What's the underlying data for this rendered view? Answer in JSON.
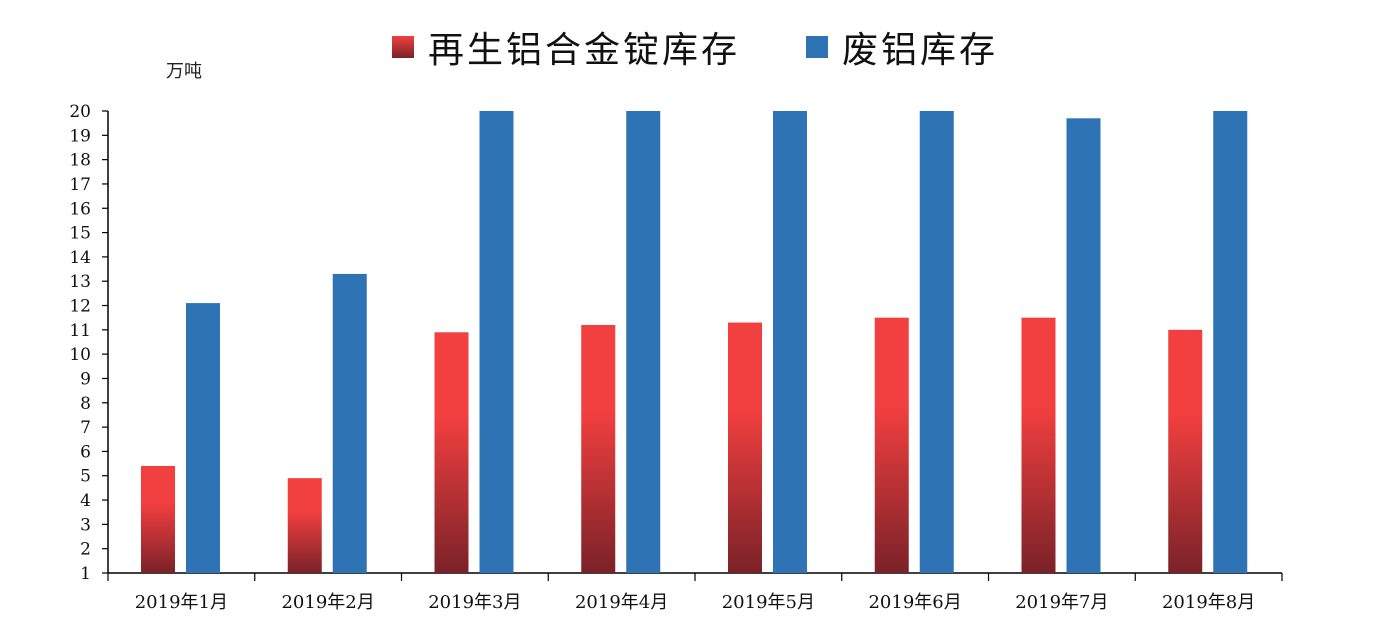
{
  "chart_data": {
    "type": "bar",
    "unit_label": "万吨",
    "categories": [
      "2019年1月",
      "2019年2月",
      "2019年3月",
      "2019年4月",
      "2019年5月",
      "2019年6月",
      "2019年7月",
      "2019年8月"
    ],
    "series": [
      {
        "name": "再生铝合金锭库存",
        "color": "#f23f3f",
        "color_dark": "#7a2228",
        "values": [
          5.4,
          4.9,
          10.9,
          11.2,
          11.3,
          11.5,
          11.5,
          11.0
        ]
      },
      {
        "name": "废铝库存",
        "color": "#2e74b5",
        "values": [
          12.1,
          13.3,
          20.0,
          20.0,
          20.0,
          20.0,
          19.7,
          20.0
        ]
      }
    ],
    "ylim": [
      1,
      20
    ],
    "yticks": [
      1,
      2,
      3,
      4,
      5,
      6,
      7,
      8,
      9,
      10,
      11,
      12,
      13,
      14,
      15,
      16,
      17,
      18,
      19,
      20
    ],
    "legend_position": "top-center",
    "grid": false
  }
}
